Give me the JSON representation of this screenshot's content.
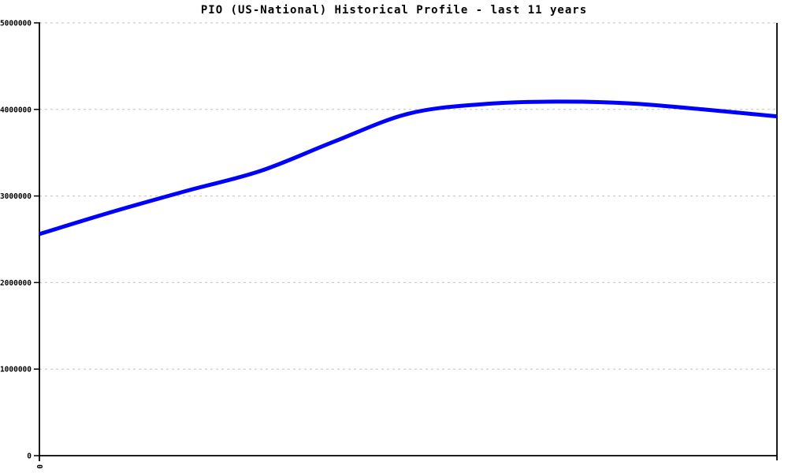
{
  "chart_data": {
    "type": "line",
    "title": "PIO (US-National) Historical Profile - last 11 years",
    "xlabel": "",
    "ylabel": "",
    "x_tick_labels": [
      "0"
    ],
    "x_tick_label_rotated": true,
    "y_ticks": [
      0,
      1000000,
      2000000,
      3000000,
      4000000,
      5000000
    ],
    "ylim": [
      0,
      5000000
    ],
    "grid": "horizontal-dashed",
    "legend_position": "none",
    "x_span_years": 11,
    "series": [
      {
        "name": "PIO (US-National)",
        "color": "#0000ff",
        "values": [
          2560000,
          2820000,
          3060000,
          3290000,
          3630000,
          3950000,
          4060000,
          4090000,
          4070000,
          4000000,
          3920000
        ]
      }
    ],
    "colors": {
      "line": "#0000ff",
      "grid": "#c0c0c0",
      "axis": "#000000",
      "background": "#ffffff",
      "text": "#000000"
    }
  }
}
